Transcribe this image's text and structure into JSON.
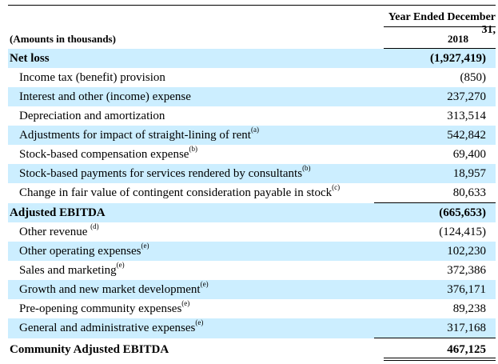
{
  "header": {
    "period": "Year Ended December 31,",
    "amounts_label": "(Amounts in thousands)",
    "year": "2018"
  },
  "rows": [
    {
      "label": "Net loss",
      "note": "",
      "value": "(1,927,419)"
    },
    {
      "label": "Income tax (benefit) provision",
      "note": "",
      "value": "(850)"
    },
    {
      "label": "Interest and other (income) expense",
      "note": "",
      "value": "237,270"
    },
    {
      "label": "Depreciation and amortization",
      "note": "",
      "value": "313,514"
    },
    {
      "label": "Adjustments for impact of straight-lining of rent",
      "note": "(a)",
      "value": "542,842"
    },
    {
      "label": "Stock-based compensation expense",
      "note": "(b)",
      "value": "69,400"
    },
    {
      "label": "Stock-based payments for services rendered by consultants",
      "note": "(b)",
      "value": "18,957"
    },
    {
      "label": "Change in fair value of contingent consideration payable in stock",
      "note": "(c)",
      "value": "80,633"
    },
    {
      "label": "Adjusted EBITDA",
      "note": "",
      "value": "(665,653)"
    },
    {
      "label": "Other revenue ",
      "note": "(d)",
      "value": "(124,415)"
    },
    {
      "label": "Other operating expenses",
      "note": "(e)",
      "value": "102,230"
    },
    {
      "label": "Sales and marketing",
      "note": "(e)",
      "value": "372,386"
    },
    {
      "label": "Growth and new market development",
      "note": "(e)",
      "value": "376,171"
    },
    {
      "label": "Pre-opening community expenses",
      "note": "(e)",
      "value": "89,238"
    },
    {
      "label": "General and administrative expenses",
      "note": "(e)",
      "value": "317,168"
    },
    {
      "label": "Community Adjusted EBITDA",
      "note": "",
      "value": "467,125"
    }
  ]
}
